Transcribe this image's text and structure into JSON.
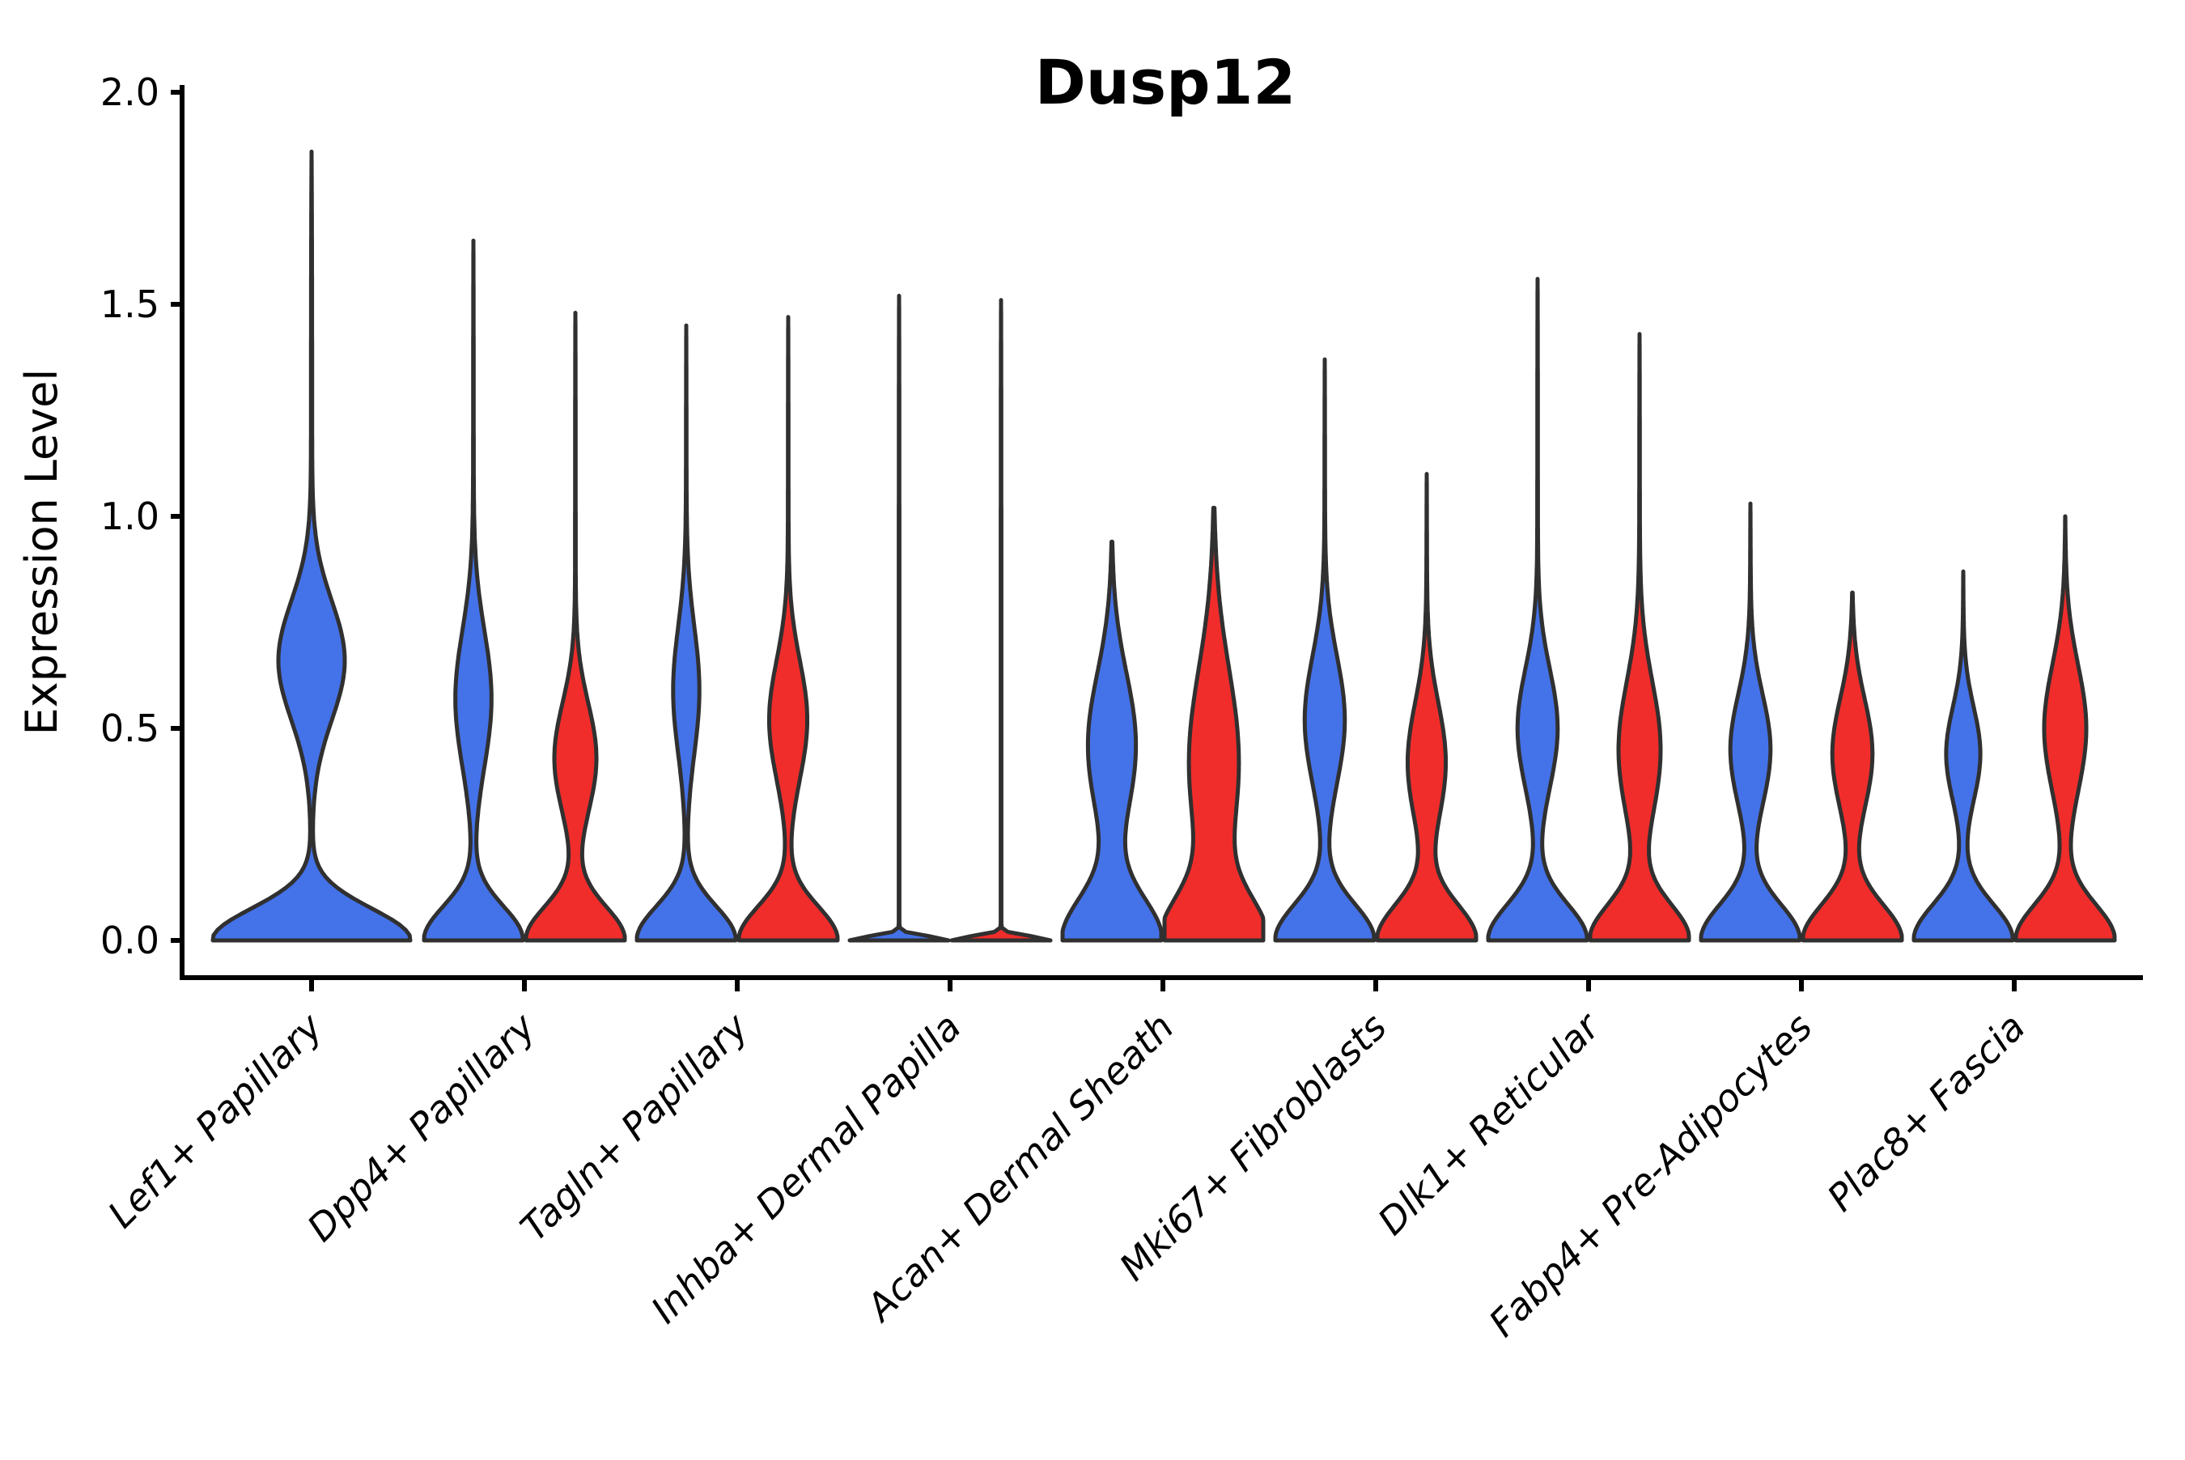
{
  "chart_data": {
    "type": "violin",
    "title": "Dusp12",
    "xlabel": "",
    "ylabel": "Expression Level",
    "ylim": [
      0.0,
      2.0
    ],
    "ytick_values": [
      0.0,
      0.5,
      1.0,
      1.5,
      2.0
    ],
    "ytick_labels": [
      "0.0",
      "0.5",
      "1.0",
      "1.5",
      "2.0"
    ],
    "grid": false,
    "legend_position": "none",
    "background_color": "#ffffff",
    "outline_color": "#303030",
    "axis_color": "#000000",
    "categories": [
      "Lef1+ Papillary",
      "Dpp4+ Papillary",
      "Tagln+ Papillary",
      "Inhba+ Dermal Papilla",
      "Acan+ Dermal Sheath",
      "Mki67+ Fibroblasts",
      "Dlk1+ Reticular",
      "Fabp4+ Pre-Adipocytes",
      "Plac8+ Fascia"
    ],
    "series": [
      {
        "name": "blue",
        "color": "#4472E8",
        "violins": [
          {
            "max": 1.86,
            "bulge_center": 0.66,
            "bulge_width": 0.14,
            "bulge_amp": 0.33,
            "base_width": 0.075,
            "span": "full"
          },
          {
            "max": 1.65,
            "bulge_center": 0.57,
            "bulge_width": 0.16,
            "bulge_amp": 0.36,
            "base_width": 0.08,
            "span": "half"
          },
          {
            "max": 1.45,
            "bulge_center": 0.59,
            "bulge_width": 0.15,
            "bulge_amp": 0.26,
            "base_width": 0.08,
            "span": "half"
          },
          {
            "max": 1.52,
            "bulge_center": 0.0,
            "bulge_width": 0.1,
            "bulge_amp": 0.0,
            "base_width": 0.01,
            "span": "half"
          },
          {
            "max": 0.94,
            "bulge_center": 0.46,
            "bulge_width": 0.17,
            "bulge_amp": 0.48,
            "base_width": 0.1,
            "span": "half"
          },
          {
            "max": 1.37,
            "bulge_center": 0.52,
            "bulge_width": 0.15,
            "bulge_amp": 0.4,
            "base_width": 0.085,
            "span": "half"
          },
          {
            "max": 1.56,
            "bulge_center": 0.5,
            "bulge_width": 0.14,
            "bulge_amp": 0.4,
            "base_width": 0.085,
            "span": "half"
          },
          {
            "max": 1.03,
            "bulge_center": 0.45,
            "bulge_width": 0.13,
            "bulge_amp": 0.4,
            "base_width": 0.085,
            "span": "half"
          },
          {
            "max": 0.87,
            "bulge_center": 0.44,
            "bulge_width": 0.11,
            "bulge_amp": 0.34,
            "base_width": 0.085,
            "span": "half"
          }
        ]
      },
      {
        "name": "red",
        "color": "#F02D2B",
        "violins": [
          null,
          {
            "max": 1.48,
            "bulge_center": 0.43,
            "bulge_width": 0.13,
            "bulge_amp": 0.42,
            "base_width": 0.08,
            "span": "half"
          },
          {
            "max": 1.47,
            "bulge_center": 0.52,
            "bulge_width": 0.14,
            "bulge_amp": 0.38,
            "base_width": 0.08,
            "span": "half"
          },
          {
            "max": 1.51,
            "bulge_center": 0.0,
            "bulge_width": 0.1,
            "bulge_amp": 0.0,
            "base_width": 0.01,
            "span": "half"
          },
          {
            "max": 1.02,
            "bulge_center": 0.42,
            "bulge_width": 0.22,
            "bulge_amp": 0.5,
            "base_width": 0.1,
            "span": "half"
          },
          {
            "max": 1.1,
            "bulge_center": 0.42,
            "bulge_width": 0.14,
            "bulge_amp": 0.38,
            "base_width": 0.085,
            "span": "half"
          },
          {
            "max": 1.43,
            "bulge_center": 0.45,
            "bulge_width": 0.16,
            "bulge_amp": 0.42,
            "base_width": 0.085,
            "span": "half"
          },
          {
            "max": 0.82,
            "bulge_center": 0.44,
            "bulge_width": 0.13,
            "bulge_amp": 0.4,
            "base_width": 0.085,
            "span": "half"
          },
          {
            "max": 1.0,
            "bulge_center": 0.5,
            "bulge_width": 0.15,
            "bulge_amp": 0.42,
            "base_width": 0.085,
            "span": "half"
          }
        ]
      }
    ]
  }
}
